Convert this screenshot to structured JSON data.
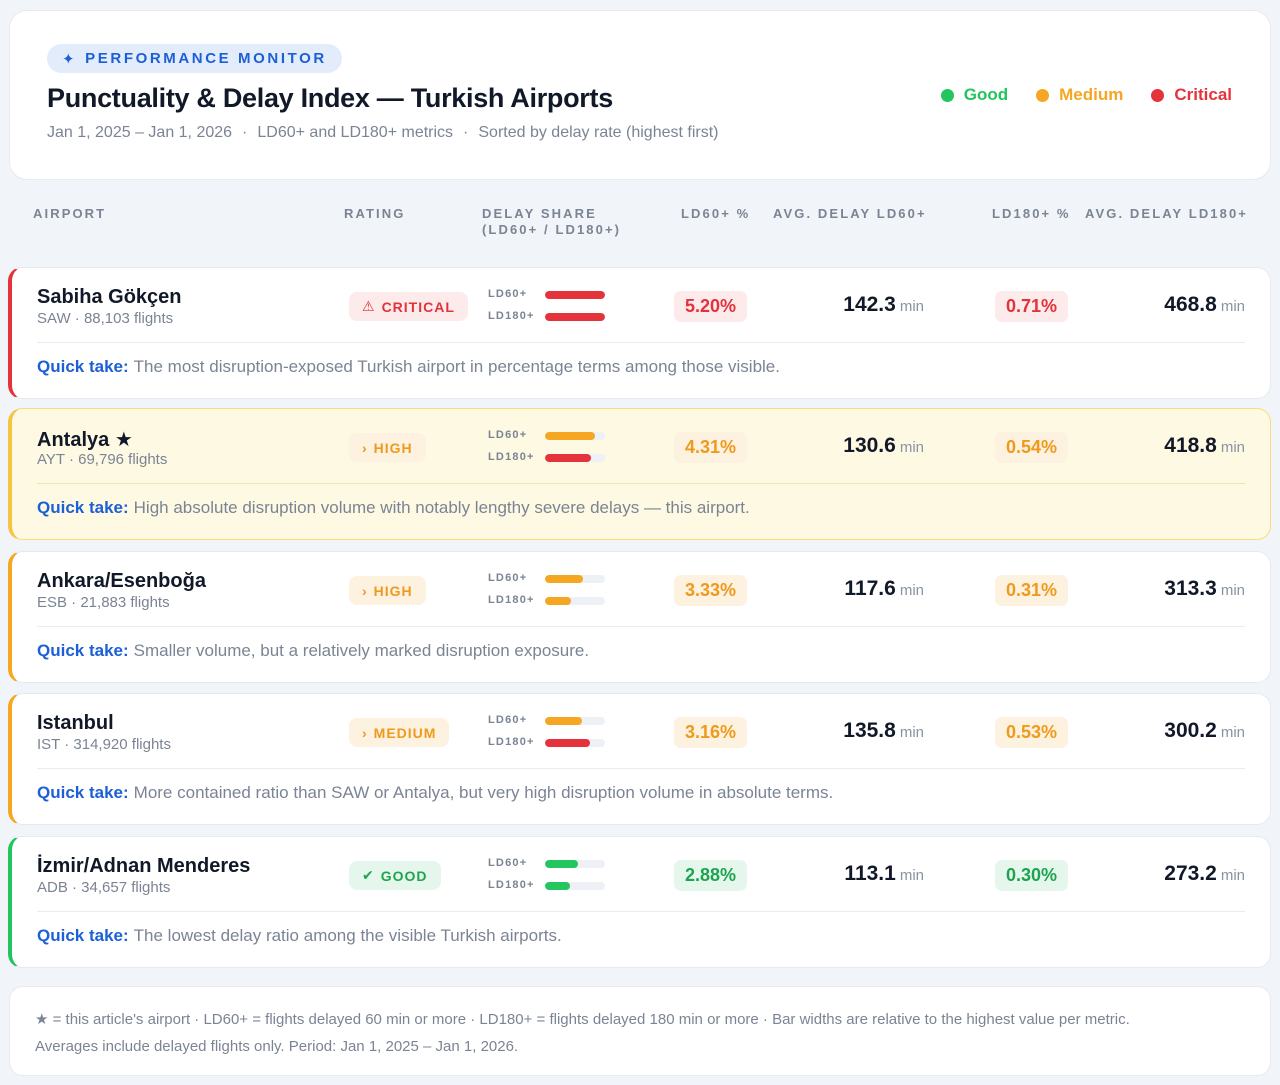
{
  "header": {
    "badge": "PERFORMANCE MONITOR",
    "title": "Punctuality & Delay Index — Turkish Airports",
    "subtitle": [
      "Jan 1, 2025 – Jan 1, 2026",
      "LD60+ and LD180+ metrics",
      "Sorted by delay rate (highest first)"
    ],
    "separator": "·",
    "legend": [
      {
        "label": "Good",
        "color": "#22c55e"
      },
      {
        "label": "Medium",
        "color": "#f5a623"
      },
      {
        "label": "Critical",
        "color": "#e5333b"
      }
    ]
  },
  "columns": {
    "airport": "AIRPORT",
    "rating": "RATING",
    "delay_share": "DELAY SHARE (LD60+ / LD180+)",
    "ld60_pct": "LD60+ %",
    "avg_ld60": "AVG. DELAY LD60+",
    "ld180_pct": "LD180+ %",
    "avg_ld180": "AVG. DELAY LD180+"
  },
  "labels": {
    "bar_ld60": "LD60+",
    "bar_ld180": "LD180+",
    "unit": "min",
    "quick_take": "Quick take:"
  },
  "colors": {
    "red": "#e5333b",
    "orange": "#f5a623",
    "green": "#22c55e",
    "accent": "#1d5fd6"
  },
  "rows": [
    {
      "name": "Sabiha Gökçen",
      "star": "",
      "sub": "SAW · 88,103 flights",
      "rating": "CRITICAL",
      "rating_icon": "⚠",
      "rating_class": "critical",
      "ld60_pct": "5.20%",
      "ld180_pct": "0.71%",
      "avg_ld60": "142.3",
      "avg_ld180": "468.8",
      "bar_ld60": 1.0,
      "bar_ld180": 1.0,
      "bar_ld60_color": "#e5333b",
      "bar_ld180_color": "#e5333b",
      "ld60_class": "red",
      "ld180_class": "red",
      "accent": "#e5333b",
      "quick": "The most disruption-exposed Turkish airport in percentage terms among those visible."
    },
    {
      "name": "Antalya",
      "star": "★",
      "sub": "AYT · 69,796 flights",
      "rating": "HIGH",
      "rating_icon": "›",
      "rating_class": "high",
      "ld60_pct": "4.31%",
      "ld180_pct": "0.54%",
      "avg_ld60": "130.6",
      "avg_ld180": "418.8",
      "bar_ld60": 0.83,
      "bar_ld180": 0.76,
      "bar_ld60_color": "#f5a623",
      "bar_ld180_color": "#e5333b",
      "ld60_class": "orange",
      "ld180_class": "orange",
      "accent": "#f5c542",
      "highlight": true,
      "quick": "High absolute disruption volume with notably lengthy severe delays — this airport."
    },
    {
      "name": "Ankara/Esenboğa",
      "star": "",
      "sub": "ESB · 21,883 flights",
      "rating": "HIGH",
      "rating_icon": "›",
      "rating_class": "high",
      "ld60_pct": "3.33%",
      "ld180_pct": "0.31%",
      "avg_ld60": "117.6",
      "avg_ld180": "313.3",
      "bar_ld60": 0.64,
      "bar_ld180": 0.44,
      "bar_ld60_color": "#f5a623",
      "bar_ld180_color": "#f5a623",
      "ld60_class": "orange",
      "ld180_class": "orange",
      "accent": "#f5a623",
      "quick": "Smaller volume, but a relatively marked disruption exposure."
    },
    {
      "name": "Istanbul",
      "star": "",
      "sub": "IST · 314,920 flights",
      "rating": "MEDIUM",
      "rating_icon": "›",
      "rating_class": "medium",
      "ld60_pct": "3.16%",
      "ld180_pct": "0.53%",
      "avg_ld60": "135.8",
      "avg_ld180": "300.2",
      "bar_ld60": 0.61,
      "bar_ld180": 0.75,
      "bar_ld60_color": "#f5a623",
      "bar_ld180_color": "#e5333b",
      "ld60_class": "orange",
      "ld180_class": "orange",
      "accent": "#f5a623",
      "quick": "More contained ratio than SAW or Antalya, but very high disruption volume in absolute terms."
    },
    {
      "name": "İzmir/Adnan Menderes",
      "star": "",
      "sub": "ADB · 34,657 flights",
      "rating": "GOOD",
      "rating_icon": "✔",
      "rating_class": "good",
      "ld60_pct": "2.88%",
      "ld180_pct": "0.30%",
      "avg_ld60": "113.1",
      "avg_ld180": "273.2",
      "bar_ld60": 0.55,
      "bar_ld180": 0.42,
      "bar_ld60_color": "#22c55e",
      "bar_ld180_color": "#22c55e",
      "ld60_class": "green",
      "ld180_class": "green",
      "accent": "#22c55e",
      "quick": "The lowest delay ratio among the visible Turkish airports."
    }
  ],
  "footer": {
    "line1": "★ = this article's airport  ·  LD60+ = flights delayed 60 min or more  ·  LD180+ = flights delayed 180 min or more  ·  Bar widths are relative to the highest value per metric.",
    "line2": "Averages include delayed flights only. Period: Jan 1, 2025 – Jan 1, 2026."
  }
}
